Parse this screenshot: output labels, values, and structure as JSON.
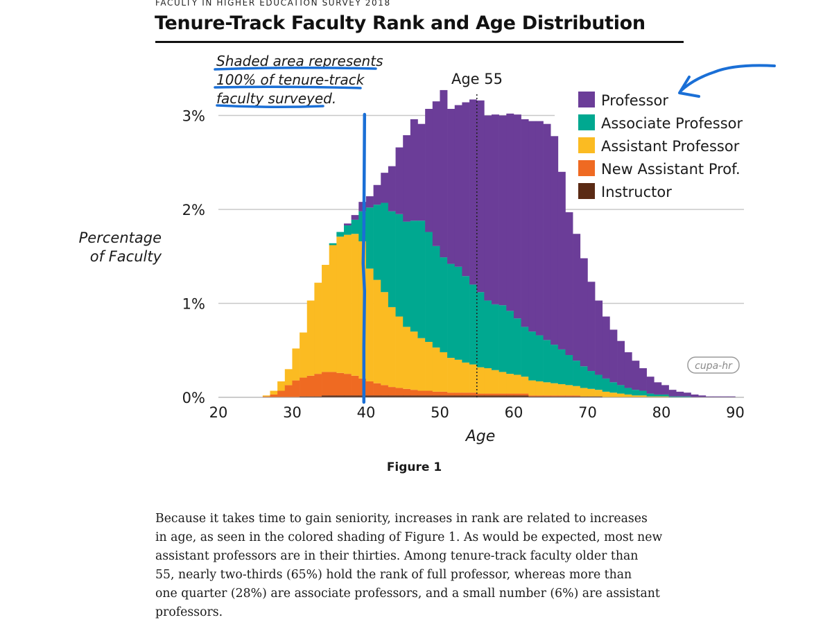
{
  "header": {
    "survey_label": "FACULTY IN HIGHER EDUCATION SURVEY 2018",
    "title": "Tenure-Track Faculty Rank and Age Distribution"
  },
  "chart_data": {
    "type": "area",
    "stacked": true,
    "x_label": "Age",
    "y_label_lines": [
      "Percentage",
      "of Faculty"
    ],
    "x_ticks": [
      "20",
      "30",
      "40",
      "50",
      "60",
      "70",
      "80",
      "90"
    ],
    "y_ticks": [
      "0%",
      "1%",
      "2%",
      "3%"
    ],
    "xlim": [
      20,
      91
    ],
    "ylim": [
      0,
      3
    ],
    "grid": true,
    "legend_position": "top-right",
    "annotation_age55": "Age 55",
    "annotation_age55_x": 55,
    "handwritten_note_lines": [
      "Shaded area represents",
      "100% of tenure-track",
      "faculty surveyed."
    ],
    "handwritten_marker_x": 39.7,
    "logo_text": "cupa-hr",
    "x": [
      26,
      27,
      28,
      29,
      30,
      31,
      32,
      33,
      34,
      35,
      36,
      37,
      38,
      39,
      40,
      41,
      42,
      43,
      44,
      45,
      46,
      47,
      48,
      49,
      50,
      51,
      52,
      53,
      54,
      55,
      56,
      57,
      58,
      59,
      60,
      61,
      62,
      63,
      64,
      65,
      66,
      67,
      68,
      69,
      70,
      71,
      72,
      73,
      74,
      75,
      76,
      77,
      78,
      79,
      80,
      81,
      82,
      83,
      84,
      85,
      86,
      87,
      88,
      89,
      90
    ],
    "series": [
      {
        "name": "Instructor",
        "color": "#5a2a14",
        "values": [
          0,
          0,
          0,
          0,
          0,
          0.01,
          0.01,
          0.01,
          0.02,
          0.02,
          0.02,
          0.02,
          0.02,
          0.02,
          0.02,
          0.02,
          0.02,
          0.02,
          0.02,
          0.02,
          0.02,
          0.02,
          0.02,
          0.02,
          0.02,
          0.02,
          0.02,
          0.02,
          0.02,
          0.02,
          0.02,
          0.02,
          0.02,
          0.02,
          0.02,
          0.02,
          0.01,
          0.01,
          0.01,
          0.01,
          0.01,
          0.01,
          0.01,
          0.01,
          0.01,
          0.01,
          0,
          0,
          0,
          0,
          0,
          0,
          0,
          0,
          0,
          0,
          0,
          0,
          0,
          0,
          0,
          0,
          0,
          0,
          0
        ]
      },
      {
        "name": "New Assistant Prof.",
        "color": "#ef6a22",
        "values": [
          0.01,
          0.03,
          0.07,
          0.13,
          0.18,
          0.2,
          0.22,
          0.24,
          0.25,
          0.25,
          0.24,
          0.23,
          0.21,
          0.18,
          0.15,
          0.13,
          0.11,
          0.09,
          0.08,
          0.07,
          0.06,
          0.05,
          0.05,
          0.04,
          0.04,
          0.03,
          0.03,
          0.03,
          0.03,
          0.02,
          0.02,
          0.02,
          0.02,
          0.02,
          0.02,
          0.02,
          0.01,
          0.01,
          0.01,
          0.01,
          0.01,
          0.01,
          0.01,
          0,
          0,
          0,
          0,
          0,
          0,
          0,
          0,
          0,
          0,
          0,
          0,
          0,
          0,
          0,
          0,
          0,
          0,
          0,
          0,
          0,
          0
        ]
      },
      {
        "name": "Assistant Professor",
        "color": "#fbbb22",
        "values": [
          0.01,
          0.04,
          0.1,
          0.17,
          0.34,
          0.48,
          0.8,
          0.97,
          1.14,
          1.35,
          1.45,
          1.48,
          1.51,
          1.46,
          1.2,
          1.1,
          0.99,
          0.85,
          0.76,
          0.66,
          0.62,
          0.56,
          0.52,
          0.47,
          0.42,
          0.37,
          0.35,
          0.32,
          0.3,
          0.28,
          0.27,
          0.25,
          0.23,
          0.21,
          0.2,
          0.18,
          0.16,
          0.15,
          0.14,
          0.13,
          0.12,
          0.11,
          0.1,
          0.09,
          0.08,
          0.07,
          0.06,
          0.05,
          0.04,
          0.03,
          0.02,
          0.02,
          0.01,
          0.01,
          0.01,
          0,
          0,
          0,
          0,
          0,
          0,
          0,
          0,
          0,
          0
        ]
      },
      {
        "name": "Associate Professor",
        "color": "#00a890",
        "values": [
          0,
          0,
          0,
          0,
          0,
          0,
          0,
          0,
          0,
          0.02,
          0.05,
          0.1,
          0.15,
          0.32,
          0.65,
          0.8,
          0.95,
          1.02,
          1.09,
          1.12,
          1.18,
          1.25,
          1.17,
          1.08,
          1.01,
          1.0,
          0.99,
          0.92,
          0.85,
          0.8,
          0.72,
          0.7,
          0.71,
          0.67,
          0.6,
          0.53,
          0.52,
          0.49,
          0.45,
          0.41,
          0.37,
          0.32,
          0.27,
          0.23,
          0.19,
          0.16,
          0.14,
          0.11,
          0.09,
          0.07,
          0.06,
          0.05,
          0.03,
          0.02,
          0.02,
          0.01,
          0.01,
          0.01,
          0,
          0,
          0,
          0,
          0,
          0,
          0
        ]
      },
      {
        "name": "Professor",
        "color": "#6b3d98",
        "values": [
          0,
          0,
          0,
          0,
          0,
          0,
          0,
          0,
          0,
          0,
          0,
          0.02,
          0.05,
          0.1,
          0.12,
          0.21,
          0.32,
          0.48,
          0.71,
          0.92,
          1.08,
          1.03,
          1.31,
          1.54,
          1.78,
          1.65,
          1.72,
          1.85,
          1.97,
          2.04,
          1.97,
          2.02,
          2.02,
          2.1,
          2.17,
          2.21,
          2.24,
          2.28,
          2.3,
          2.22,
          1.89,
          1.52,
          1.35,
          1.15,
          0.95,
          0.79,
          0.66,
          0.56,
          0.47,
          0.38,
          0.31,
          0.24,
          0.18,
          0.13,
          0.1,
          0.07,
          0.05,
          0.04,
          0.03,
          0.02,
          0.01,
          0.01,
          0.01,
          0.01,
          0
        ]
      }
    ]
  },
  "figure_caption": "Figure 1",
  "paragraph_lines": [
    "Because it takes time to gain seniority, increases in rank are related to increases",
    "in age, as seen in the colored shading of Figure 1. As would be expected, most new",
    "assistant professors are in their thirties. Among tenure-track faculty older than",
    "55, nearly two-thirds (65%) hold the rank of full professor, whereas more than",
    "one quarter (28%) are associate professors, and a small number (6%) are assistant",
    "professors."
  ]
}
